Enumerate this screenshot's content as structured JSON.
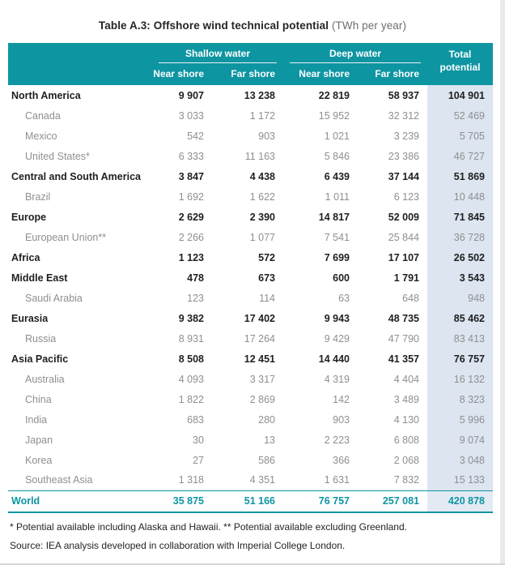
{
  "title": {
    "bold": "Table A.3: Offshore wind technical potential",
    "unit": "(TWh per year)"
  },
  "table": {
    "groups": [
      {
        "label": "Shallow water",
        "cols": [
          "Near shore",
          "Far shore"
        ]
      },
      {
        "label": "Deep water",
        "cols": [
          "Near shore",
          "Far shore"
        ]
      }
    ],
    "total_label": "Total potential",
    "rows": [
      {
        "name": "North America",
        "level": "region",
        "values": [
          "9 907",
          "13 238",
          "22 819",
          "58 937",
          "104 901"
        ]
      },
      {
        "name": "Canada",
        "level": "country",
        "values": [
          "3 033",
          "1 172",
          "15 952",
          "32 312",
          "52 469"
        ]
      },
      {
        "name": "Mexico",
        "level": "country",
        "values": [
          "542",
          "903",
          "1 021",
          "3 239",
          "5 705"
        ]
      },
      {
        "name": "United States*",
        "level": "country",
        "values": [
          "6 333",
          "11 163",
          "5 846",
          "23 386",
          "46 727"
        ]
      },
      {
        "name": "Central and South America",
        "level": "region",
        "values": [
          "3 847",
          "4 438",
          "6 439",
          "37 144",
          "51 869"
        ]
      },
      {
        "name": "Brazil",
        "level": "country",
        "values": [
          "1 692",
          "1 622",
          "1 011",
          "6 123",
          "10 448"
        ]
      },
      {
        "name": "Europe",
        "level": "region",
        "values": [
          "2 629",
          "2 390",
          "14 817",
          "52 009",
          "71 845"
        ]
      },
      {
        "name": "European Union**",
        "level": "country",
        "values": [
          "2 266",
          "1 077",
          "7 541",
          "25 844",
          "36 728"
        ]
      },
      {
        "name": "Africa",
        "level": "region",
        "values": [
          "1 123",
          "572",
          "7 699",
          "17 107",
          "26 502"
        ]
      },
      {
        "name": "Middle East",
        "level": "region",
        "values": [
          "478",
          "673",
          "600",
          "1 791",
          "3 543"
        ]
      },
      {
        "name": "Saudi Arabia",
        "level": "country",
        "values": [
          "123",
          "114",
          "63",
          "648",
          "948"
        ]
      },
      {
        "name": "Eurasia",
        "level": "region",
        "values": [
          "9 382",
          "17 402",
          "9 943",
          "48 735",
          "85 462"
        ]
      },
      {
        "name": "Russia",
        "level": "country",
        "values": [
          "8 931",
          "17 264",
          "9 429",
          "47 790",
          "83 413"
        ]
      },
      {
        "name": "Asia Pacific",
        "level": "region",
        "values": [
          "8 508",
          "12 451",
          "14 440",
          "41 357",
          "76 757"
        ]
      },
      {
        "name": "Australia",
        "level": "country",
        "values": [
          "4 093",
          "3 317",
          "4 319",
          "4 404",
          "16 132"
        ]
      },
      {
        "name": "China",
        "level": "country",
        "values": [
          "1 822",
          "2 869",
          "142",
          "3 489",
          "8 323"
        ]
      },
      {
        "name": "India",
        "level": "country",
        "values": [
          "683",
          "280",
          "903",
          "4 130",
          "5 996"
        ]
      },
      {
        "name": "Japan",
        "level": "country",
        "values": [
          "30",
          "13",
          "2 223",
          "6 808",
          "9 074"
        ]
      },
      {
        "name": "Korea",
        "level": "country",
        "values": [
          "27",
          "586",
          "366",
          "2 068",
          "3 048"
        ]
      },
      {
        "name": "Southeast Asia",
        "level": "country",
        "values": [
          "1 318",
          "4 351",
          "1 631",
          "7 832",
          "15 133"
        ]
      },
      {
        "name": "World",
        "level": "world",
        "values": [
          "35 875",
          "51 166",
          "76 757",
          "257 081",
          "420 878"
        ]
      }
    ]
  },
  "notes": {
    "footnote": "* Potential available including Alaska and Hawaii. ** Potential available excluding Greenland.",
    "source": "Source: IEA analysis developed in collaboration with Imperial College London."
  },
  "colors": {
    "teal": "#0e95a2",
    "total_band": "#dce5f0",
    "region_text": "#1f1f1f",
    "country_text": "#8f8f8f"
  }
}
